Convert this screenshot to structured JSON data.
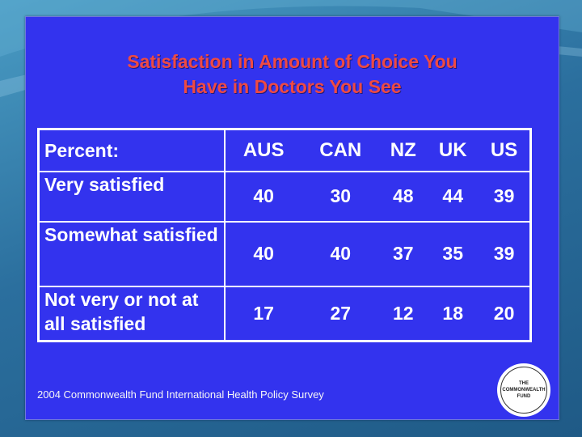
{
  "title": {
    "line1": "Satisfaction in Amount of Choice You",
    "line2": "Have in Doctors You See"
  },
  "table": {
    "header_label": "Percent:",
    "columns": [
      "AUS",
      "CAN",
      "NZ",
      "UK",
      "US"
    ],
    "rows": [
      {
        "label": "Very satisfied",
        "values": [
          "40",
          "30",
          "48",
          "44",
          "39"
        ]
      },
      {
        "label": "Somewhat satisfied",
        "values": [
          "40",
          "40",
          "37",
          "35",
          "39"
        ]
      },
      {
        "label": "Not very or not at all satisfied",
        "values": [
          "17",
          "27",
          "12",
          "18",
          "20"
        ]
      }
    ]
  },
  "footer": "2004 Commonwealth Fund International Health Policy Survey",
  "logo": {
    "line1": "THE",
    "line2": "COMMONWEALTH",
    "line3": "FUND"
  },
  "colors": {
    "slide_bg": "#3333ee",
    "title": "#ee4a43",
    "text": "#ffffff"
  }
}
